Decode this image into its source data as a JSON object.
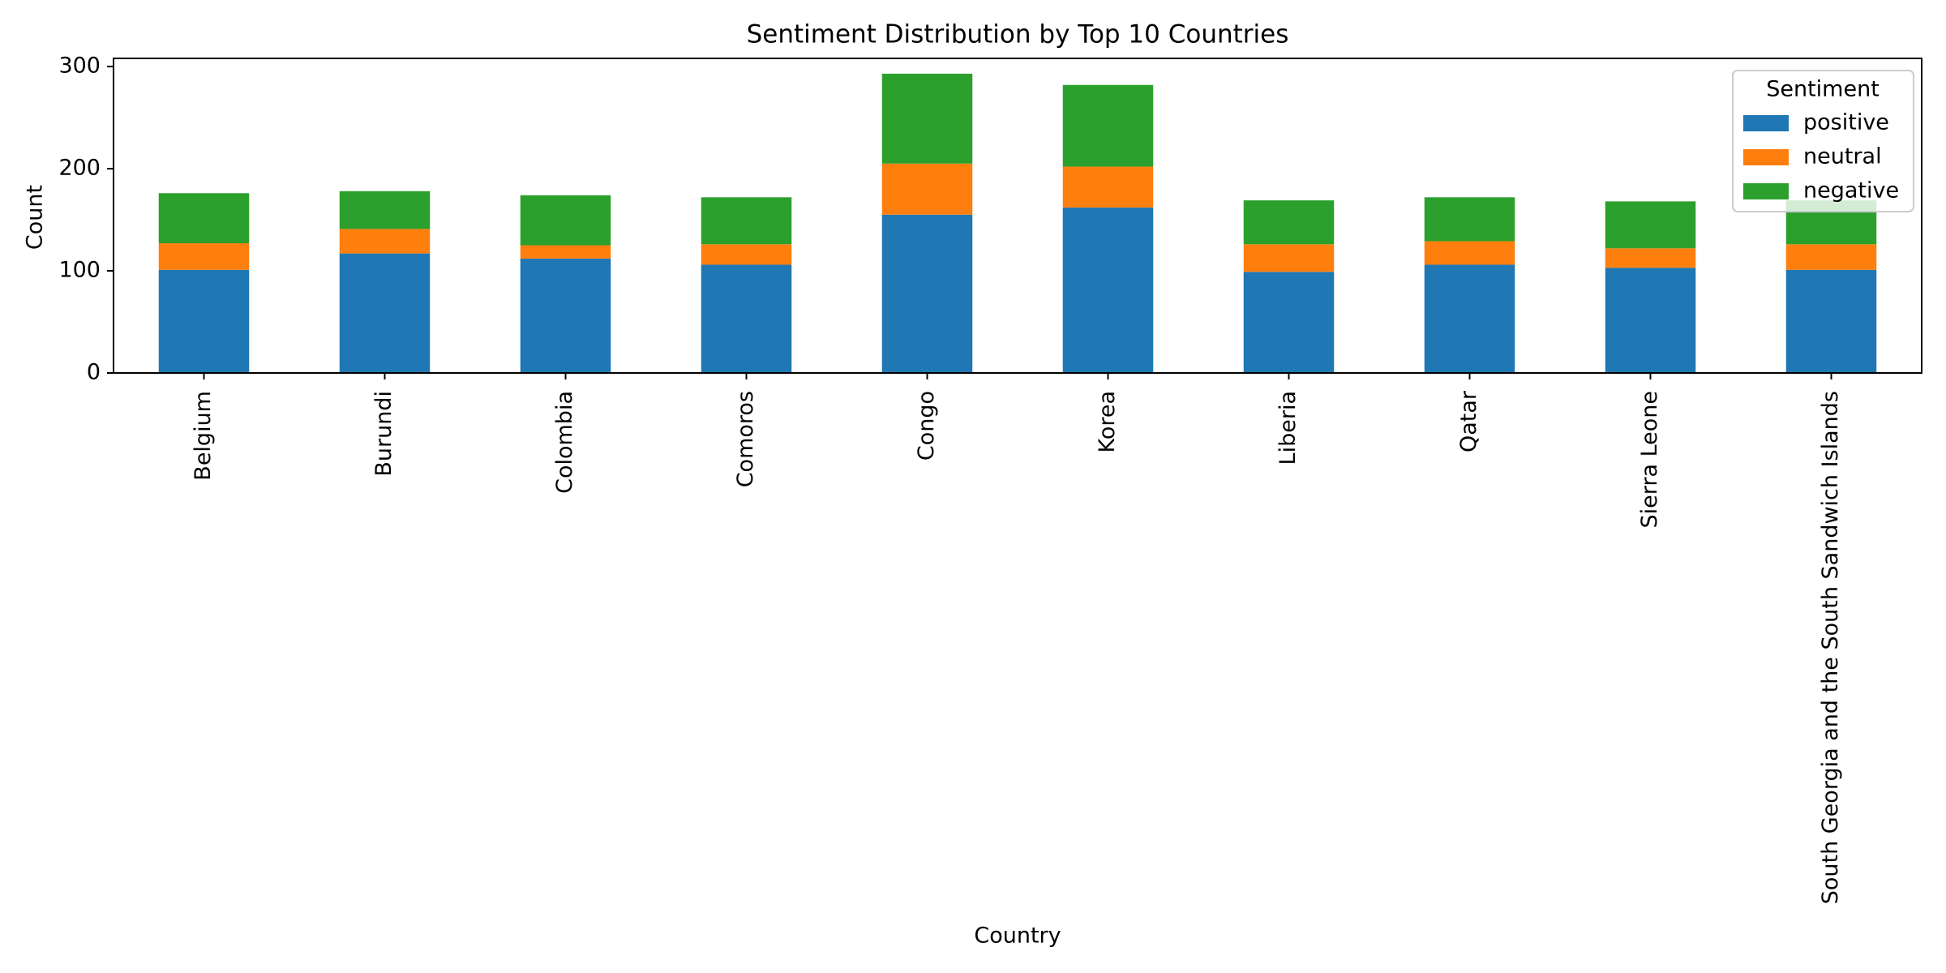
{
  "chart_data": {
    "type": "bar",
    "stacked": true,
    "title": "Sentiment Distribution by Top 10 Countries",
    "xlabel": "Country",
    "ylabel": "Count",
    "ylim": [
      0,
      308
    ],
    "yticks": [
      0,
      100,
      200,
      300
    ],
    "grid": false,
    "categories": [
      "Belgium",
      "Burundi",
      "Colombia",
      "Comoros",
      "Congo",
      "Korea",
      "Liberia",
      "Qatar",
      "Sierra Leone",
      "South Georgia and the South Sandwich Islands"
    ],
    "series": [
      {
        "name": "positive",
        "color": "#1f77b4",
        "values": [
          101,
          117,
          112,
          106,
          155,
          162,
          99,
          106,
          103,
          101
        ]
      },
      {
        "name": "neutral",
        "color": "#ff7f0e",
        "values": [
          26,
          24,
          13,
          20,
          50,
          40,
          27,
          23,
          19,
          25
        ]
      },
      {
        "name": "negative",
        "color": "#2ca02c",
        "values": [
          49,
          37,
          49,
          46,
          88,
          80,
          43,
          43,
          46,
          43
        ]
      }
    ],
    "legend": {
      "title": "Sentiment",
      "placement": "top-right"
    }
  }
}
